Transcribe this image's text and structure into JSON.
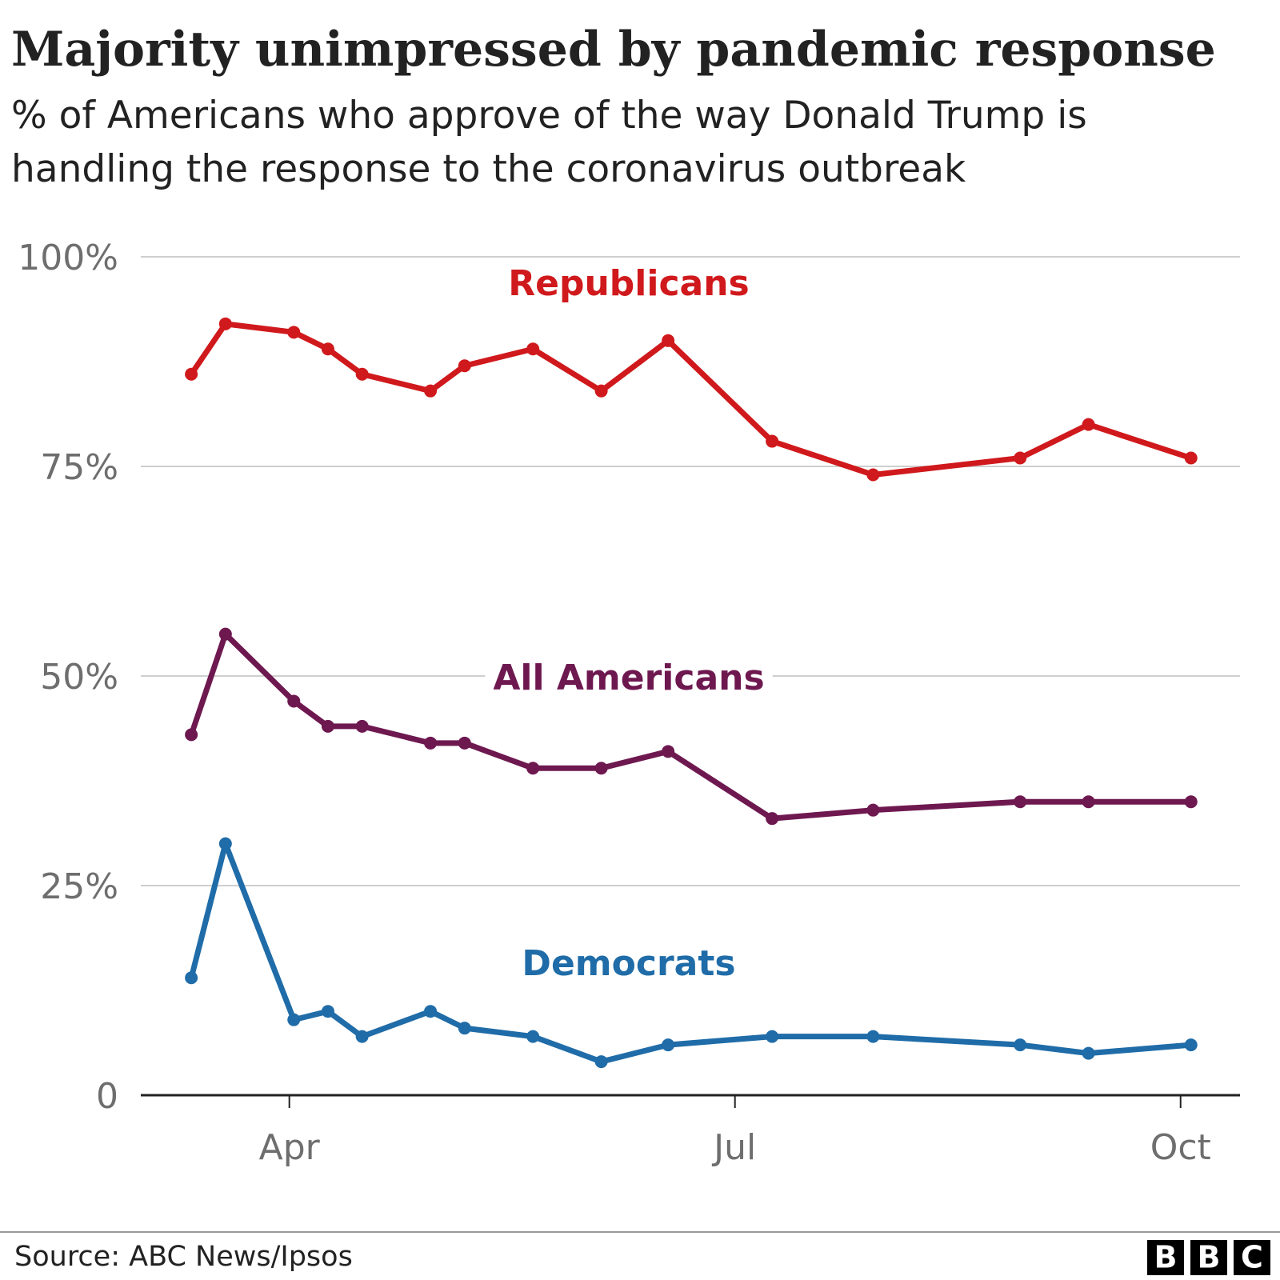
{
  "chart_data": {
    "type": "line",
    "title": "Majority unimpressed by pandemic response",
    "subtitle": "% of Americans who approve of the way Donald Trump is handling the response to the coronavirus outbreak",
    "x": [
      3.34,
      3.57,
      4.03,
      4.26,
      4.49,
      4.95,
      5.18,
      5.64,
      6.1,
      6.55,
      7.25,
      7.93,
      8.92,
      9.38,
      10.07
    ],
    "xlim": [
      3,
      10.4
    ],
    "xticks": [
      {
        "value": 4,
        "label": "Apr"
      },
      {
        "value": 7,
        "label": "Jul"
      },
      {
        "value": 10,
        "label": "Oct"
      }
    ],
    "ylim": [
      0,
      100
    ],
    "yticks": [
      0,
      {
        "value": 25,
        "label": "25%"
      },
      {
        "value": 50,
        "label": "50%"
      },
      {
        "value": 75,
        "label": "75%"
      },
      {
        "value": 100,
        "label": "100%"
      }
    ],
    "grid": true,
    "series": [
      {
        "name": "Republicans",
        "color": "#d0191c",
        "values": [
          86,
          92,
          91,
          89,
          86,
          84,
          87,
          89,
          84,
          90,
          78,
          74,
          76,
          80,
          76
        ]
      },
      {
        "name": "All Americans",
        "color": "#6e1850",
        "values": [
          43,
          55,
          47,
          44,
          44,
          42,
          42,
          39,
          39,
          41,
          33,
          34,
          35,
          35,
          35
        ]
      },
      {
        "name": "Democrats",
        "color": "#1f6ca8",
        "values": [
          14,
          30,
          9,
          10,
          7,
          10,
          8,
          7,
          4,
          6,
          7,
          7,
          6,
          5,
          6
        ]
      }
    ],
    "source": "Source: ABC News/Ipsos",
    "logo": [
      "B",
      "B",
      "C"
    ]
  }
}
